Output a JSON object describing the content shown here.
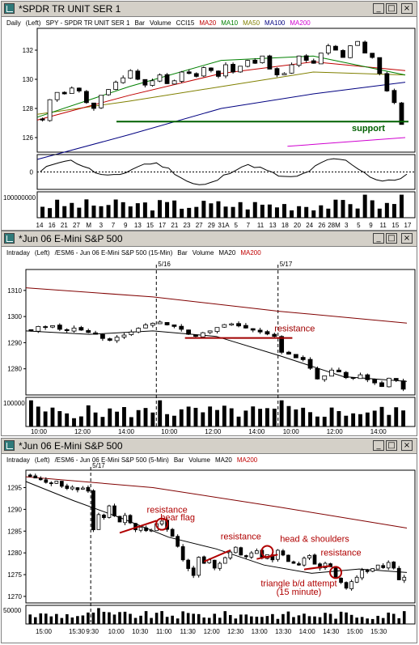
{
  "windows": [
    {
      "title": "*SPDR TR UNIT SER 1",
      "legend": [
        {
          "text": "Daily",
          "color": "#000000"
        },
        {
          "text": "(Left)",
          "color": "#000000"
        },
        {
          "text": "SPY - SPDR TR UNIT SER 1",
          "color": "#000000"
        },
        {
          "text": "Bar",
          "color": "#000000"
        },
        {
          "text": "Volume",
          "color": "#000000"
        },
        {
          "text": "CCI15",
          "color": "#000000"
        },
        {
          "text": "MA20",
          "color": "#c00000"
        },
        {
          "text": "MA10",
          "color": "#008000"
        },
        {
          "text": "MA50",
          "color": "#808000"
        },
        {
          "text": "MA100",
          "color": "#000080"
        },
        {
          "text": "MA200",
          "color": "#d000d0"
        }
      ]
    },
    {
      "title": "*Jun 06  E-Mini S&P 500",
      "legend": [
        {
          "text": "Intraday",
          "color": "#000000"
        },
        {
          "text": "(Left)",
          "color": "#000000"
        },
        {
          "text": "/ESM6 - Jun 06  E-Mini S&P 500  (15-Min)",
          "color": "#000000"
        },
        {
          "text": "Bar",
          "color": "#000000"
        },
        {
          "text": "Volume",
          "color": "#000000"
        },
        {
          "text": "MA20",
          "color": "#000000"
        },
        {
          "text": "MA200",
          "color": "#c00000"
        }
      ]
    },
    {
      "title": "*Jun 06  E-Mini S&P 500",
      "legend": [
        {
          "text": "Intraday",
          "color": "#000000"
        },
        {
          "text": "(Left)",
          "color": "#000000"
        },
        {
          "text": "/ESM6 - Jun 06  E-Mini S&P 500  (5-Min)",
          "color": "#000000"
        },
        {
          "text": "Bar",
          "color": "#000000"
        },
        {
          "text": "Volume",
          "color": "#000000"
        },
        {
          "text": "MA20",
          "color": "#000000"
        },
        {
          "text": "MA200",
          "color": "#c00000"
        }
      ]
    }
  ],
  "window_buttons": {
    "minimize": "_",
    "maximize": "□",
    "close": "×"
  },
  "chart_data": [
    {
      "type": "candlestick",
      "interval": "daily",
      "ylim": [
        125,
        133.5
      ],
      "yticks": [
        126,
        128,
        130,
        132
      ],
      "x_labels": [
        "14",
        "16",
        "21",
        "27",
        "M",
        "3",
        "7",
        "9",
        "13",
        "15",
        "17",
        "21",
        "23",
        "27",
        "29",
        "31A",
        "5",
        "7",
        "11",
        "13",
        "18",
        "20",
        "24",
        "26",
        "28M",
        "3",
        "5",
        "9",
        "11",
        "15",
        "17"
      ],
      "price_path": [
        127.2,
        128.6,
        129.1,
        129.0,
        129.4,
        129.2,
        128.4,
        128.0,
        128.9,
        129.3,
        129.8,
        130.1,
        130.6,
        130.0,
        129.6,
        129.9,
        130.3,
        129.7,
        129.9,
        130.5,
        130.4,
        130.2,
        130.8,
        130.6,
        130.2,
        131.0,
        130.5,
        130.9,
        131.3,
        131.1,
        131.6,
        130.7,
        130.3,
        130.4,
        131.0,
        131.6,
        131.3,
        131.1,
        131.8,
        132.3,
        132.0,
        131.5,
        132.3,
        132.6,
        131.8,
        131.5,
        130.4,
        129.2,
        128.4,
        126.9
      ],
      "ma_values": {
        "MA10": [
          127.4,
          129.5,
          131.3,
          131.6,
          130.3
        ],
        "MA20": [
          127.2,
          128.9,
          130.4,
          131.2,
          130.6
        ],
        "MA50": [
          127.6,
          128.5,
          129.5,
          130.5,
          130.3
        ],
        "MA100": [
          124.5,
          126.2,
          128.0,
          129.0,
          129.8
        ],
        "MA200": [
          125.4,
          125.7,
          126.0
        ]
      },
      "annotations": [
        {
          "text": "support",
          "price": 127.1
        }
      ],
      "cci": {
        "ylabel": "0"
      },
      "volume": {
        "scale_label": "100000000"
      }
    },
    {
      "type": "candlestick",
      "interval": "15-Min",
      "ylim": [
        1270,
        1318
      ],
      "yticks": [
        1280,
        1290,
        1300,
        1310
      ],
      "x_labels": [
        "10:00",
        "12:00",
        "14:00",
        "10:00",
        "12:00",
        "14:00",
        "10:00",
        "12:00",
        "14:00"
      ],
      "session_markers": [
        "5/16",
        "5/17"
      ],
      "price_path": [
        1294.5,
        1296.2,
        1295.8,
        1296.5,
        1295.1,
        1294.6,
        1295.6,
        1294.8,
        1293.9,
        1293.2,
        1291.6,
        1290.9,
        1292.1,
        1292.9,
        1294.1,
        1295.5,
        1296.8,
        1297.4,
        1297.9,
        1296.8,
        1296.2,
        1295.1,
        1293.2,
        1292.4,
        1293.8,
        1294.5,
        1295.8,
        1296.9,
        1297.2,
        1296.4,
        1295.6,
        1294.8,
        1294.1,
        1293.3,
        1292.4,
        1286.3,
        1285.6,
        1284.2,
        1283.5,
        1280.2,
        1276.1,
        1277.3,
        1279.5,
        1278.8,
        1276.6,
        1276.4,
        1277.7,
        1275.8,
        1274.6,
        1273.2,
        1276.4,
        1275.6,
        1272.2
      ],
      "ma_values": {
        "MA20": [
          1294.5,
          1293.2,
          1294.5,
          1292.4,
          1285.0,
          1277.0,
          1275.2
        ],
        "MA200": [
          1311.0,
          1307.5,
          1302.0,
          1297.5
        ]
      },
      "annotations": [
        {
          "text": "resistance",
          "price": 1291.8
        }
      ],
      "volume": {
        "scale_label": "100000"
      }
    },
    {
      "type": "candlestick",
      "interval": "5-Min",
      "ylim": [
        1268.5,
        1299
      ],
      "yticks": [
        1270,
        1275,
        1280,
        1285,
        1290,
        1295
      ],
      "x_labels": [
        "15:00",
        "15:30",
        "9:30",
        "10:00",
        "10:30",
        "11:00",
        "11:30",
        "12:00",
        "12:30",
        "13:00",
        "13:30",
        "14:00",
        "14:30",
        "15:00",
        "15:30"
      ],
      "session_markers": [
        "5/17"
      ],
      "price_path": [
        1297.6,
        1297.2,
        1296.8,
        1296.2,
        1295.9,
        1296.5,
        1295.3,
        1294.8,
        1295.1,
        1294.5,
        1294.9,
        1294.2,
        1285.3,
        1288.8,
        1288.1,
        1290.8,
        1288.5,
        1287.1,
        1288.6,
        1286.9,
        1285.3,
        1285.9,
        1285.1,
        1285.2,
        1286.7,
        1287.3,
        1285.4,
        1283.8,
        1281.5,
        1278.4,
        1276.4,
        1274.8,
        1279.0,
        1277.6,
        1278.4,
        1276.5,
        1277.6,
        1278.9,
        1280.2,
        1281.3,
        1279.5,
        1279.1,
        1280.0,
        1280.5,
        1278.8,
        1279.6,
        1278.4,
        1280.6,
        1279.5,
        1278.0,
        1277.6,
        1277.2,
        1278.8,
        1279.4,
        1277.4,
        1276.5,
        1277.6,
        1276.8,
        1274.3,
        1273.2,
        1271.9,
        1273.4,
        1274.4,
        1276.0,
        1275.7,
        1276.4,
        1277.2,
        1276.6,
        1277.8,
        1276.5,
        1273.8,
        1274.4
      ],
      "ma_values": {
        "MA20": [
          1296.4,
          1292.0,
          1288.0,
          1283.6,
          1280.9,
          1277.2,
          1275.3,
          1276.3,
          1275.5
        ],
        "MA200": [
          1297.5,
          1295.0,
          1290.5,
          1285.7
        ]
      },
      "annotations": [
        {
          "text": "resistance",
          "price": 1289.2
        },
        {
          "text": "bear flag",
          "price": 1287.5
        },
        {
          "text": "resistance",
          "price": 1283.1
        },
        {
          "text": "head & shoulders",
          "price": 1282.5
        },
        {
          "text": "resistance",
          "price": 1279.4
        },
        {
          "text": "triangle b/d attempt",
          "price": 1272.3
        },
        {
          "text": "(15 minute)",
          "price": 1270.4
        }
      ],
      "volume": {
        "scale_label": "50000"
      }
    }
  ]
}
